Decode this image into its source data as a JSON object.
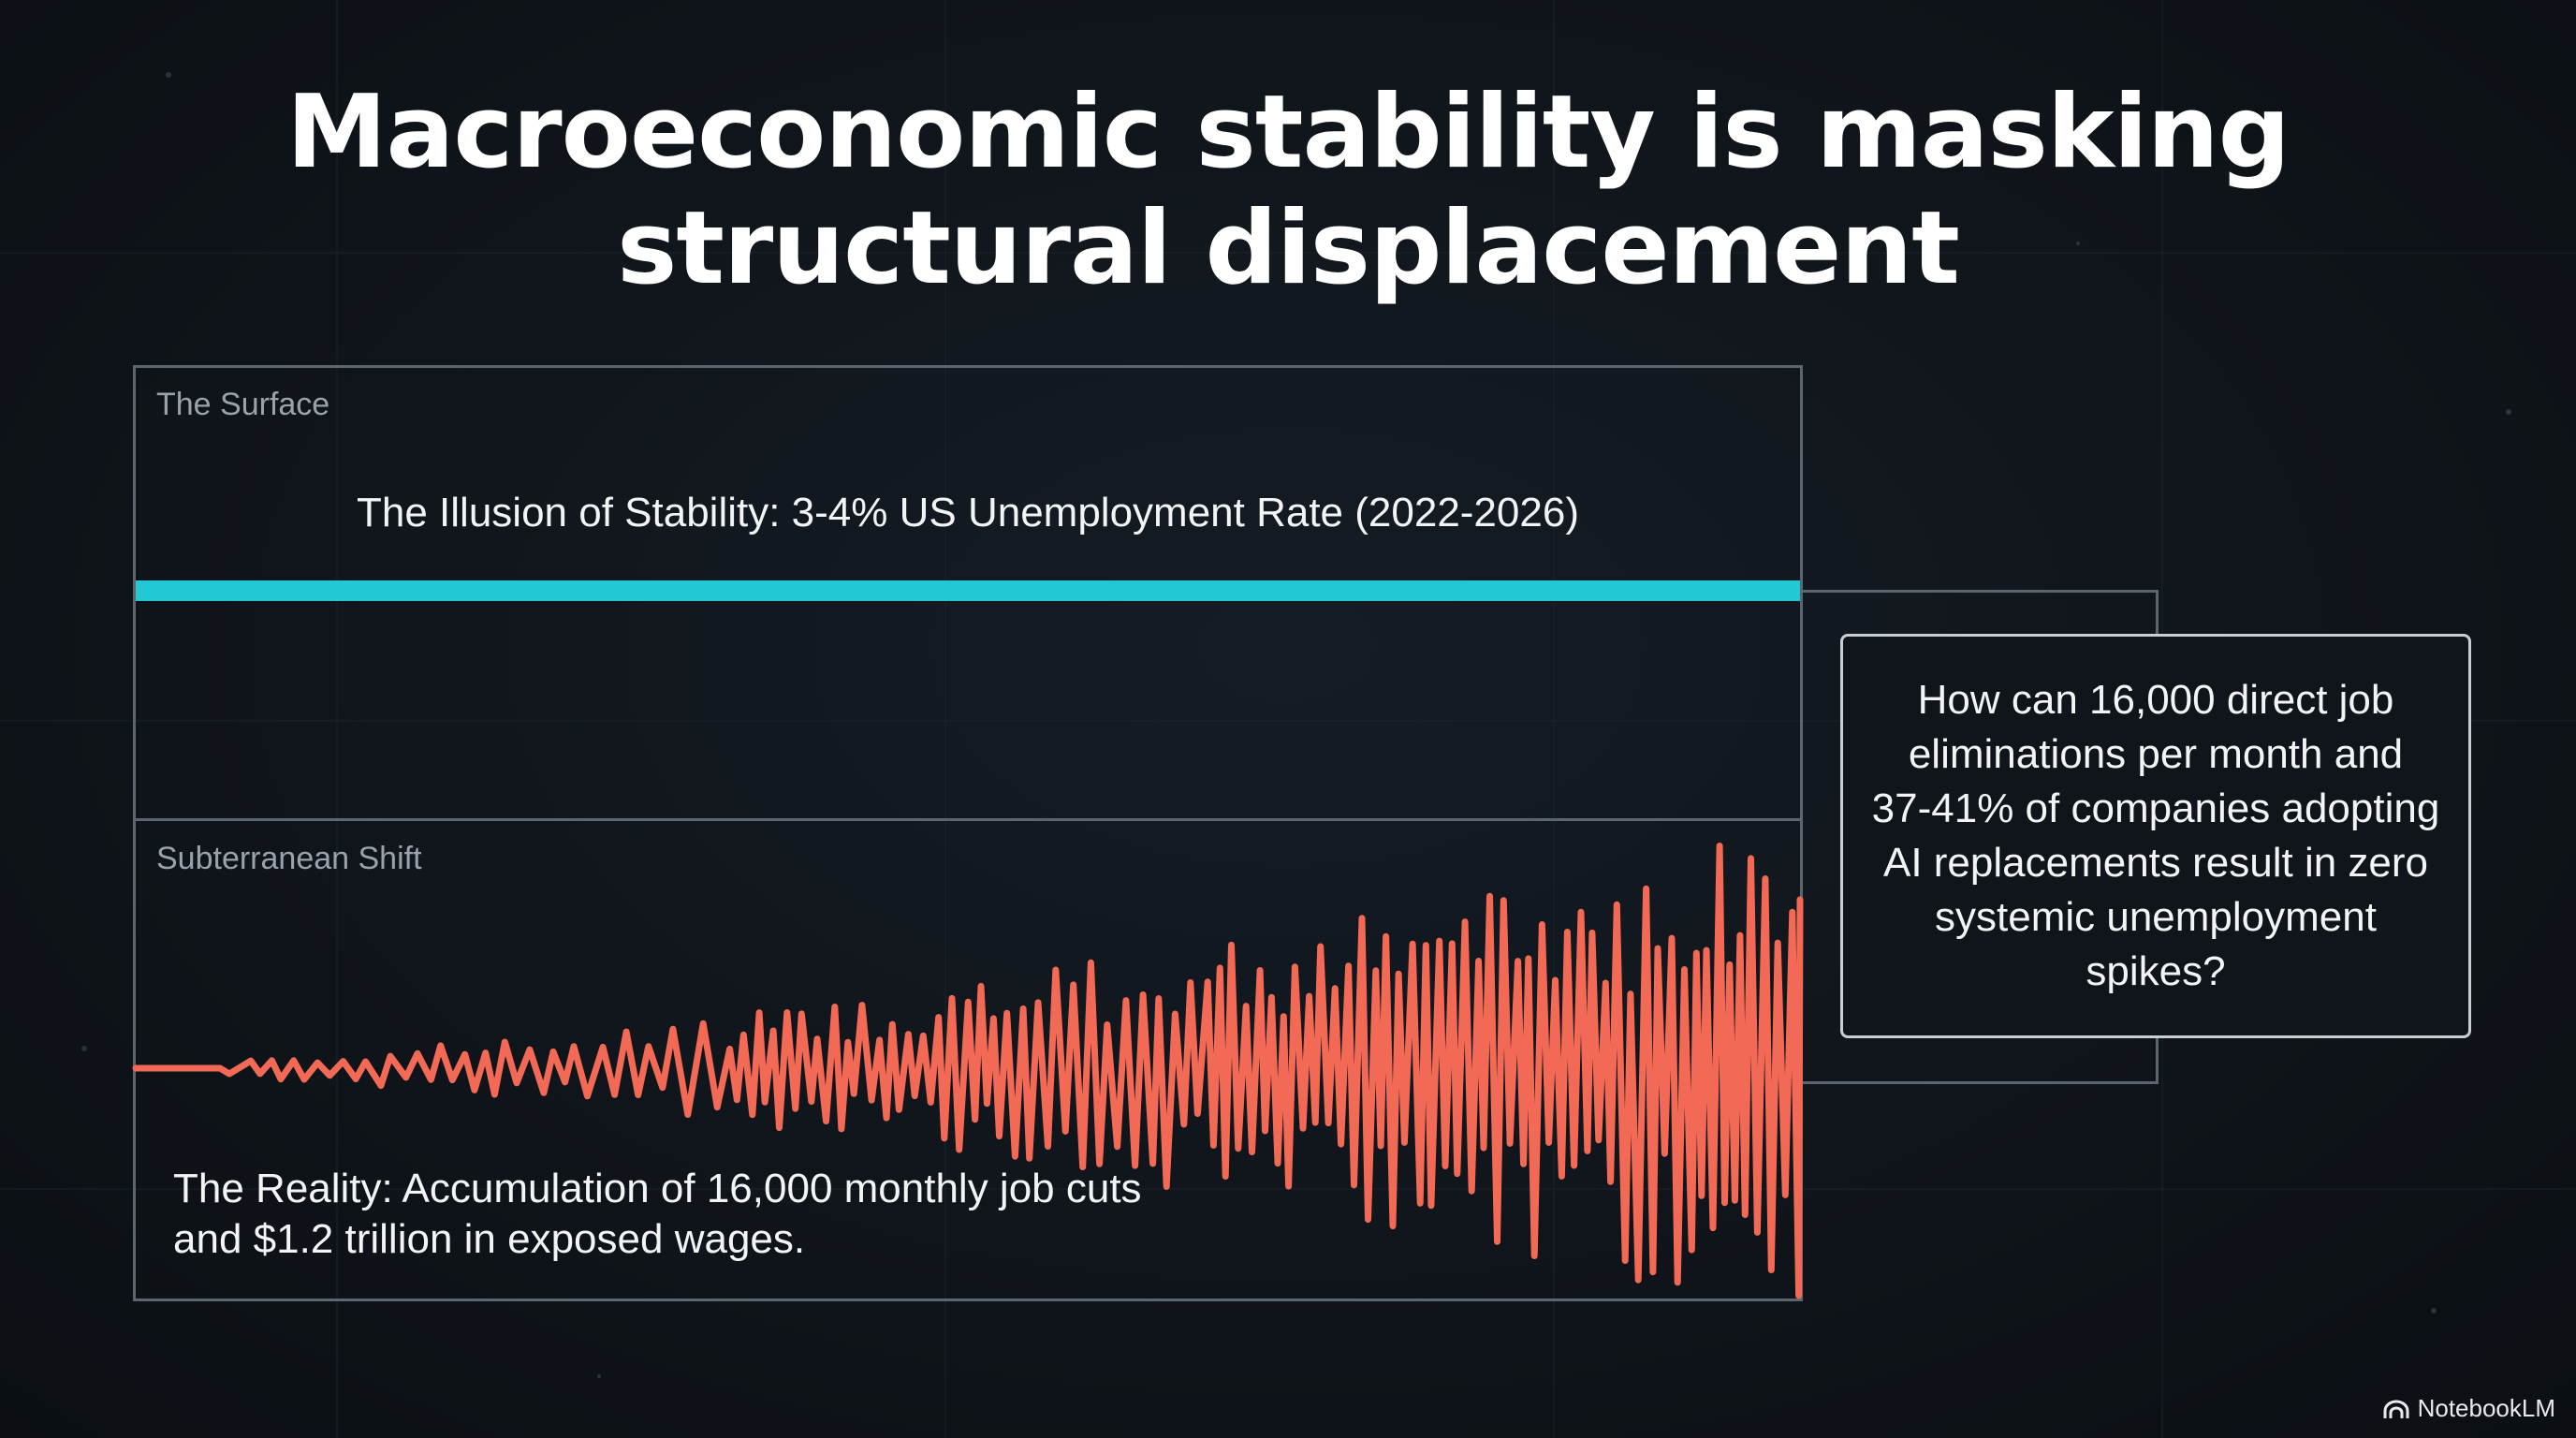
{
  "title": {
    "line1": "Macroeconomic stability is masking",
    "line2": "structural displacement"
  },
  "surface": {
    "label": "The Surface",
    "caption": "The Illusion of Stability: 3-4% US Unemployment Rate (2022-2026)"
  },
  "subterranean": {
    "label": "Subterranean Shift",
    "caption_line1": "The Reality: Accumulation of 16,000 monthly job cuts",
    "caption_line2": "and $1.2 trillion in exposed wages."
  },
  "question": {
    "lines": [
      "How can 16,000 direct job",
      "eliminations per month and",
      "37-41% of companies adopting",
      "AI replacements result in zero",
      "systemic unemployment",
      "spikes?"
    ]
  },
  "brand": {
    "name": "NotebookLM"
  },
  "colors": {
    "stability_line": "#22c9d4",
    "reality_wave": "#f26a55",
    "panel_border": "#5b6670"
  }
}
